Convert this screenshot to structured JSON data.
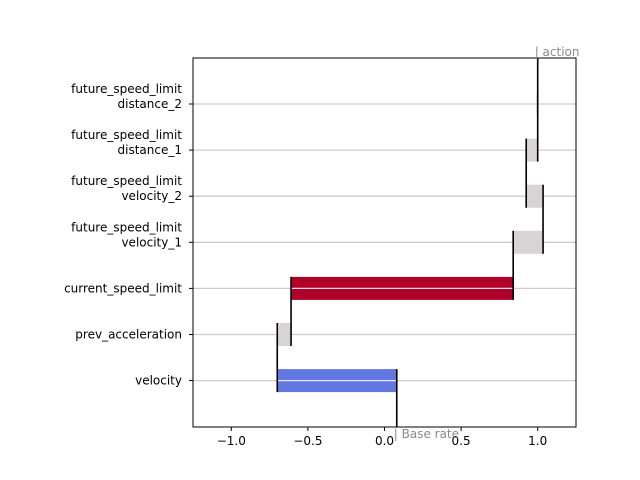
{
  "chart_data": {
    "type": "waterfall",
    "orientation": "horizontal",
    "title": "",
    "xlabel": "",
    "ylabel": "",
    "xlim": [
      -1.25,
      1.25
    ],
    "x_ticks": [
      -1.0,
      -0.5,
      0.0,
      0.5,
      1.0
    ],
    "x_tick_labels": [
      "−1.0",
      "−0.5",
      "0.0",
      "0.5",
      "1.0"
    ],
    "base_value": 0.08,
    "final_value": 1.0,
    "base_label": "| Base rate",
    "final_label": "| action",
    "grid": "horizontal",
    "colors": {
      "positive": "#b0002a",
      "negative": "#6278e0",
      "small": "#d8d3d4",
      "connector": "#000000",
      "grid": "#cccccc",
      "annotation": "#8a8a8a"
    },
    "features": [
      {
        "lines": [
          "future_speed_limit",
          "distance_2"
        ],
        "start": 1.0,
        "end": 1.0,
        "color_key": "small"
      },
      {
        "lines": [
          "future_speed_limit",
          "distance_1"
        ],
        "start": 0.925,
        "end": 1.0,
        "color_key": "small"
      },
      {
        "lines": [
          "future_speed_limit",
          "velocity_2"
        ],
        "start": 1.035,
        "end": 0.925,
        "color_key": "small"
      },
      {
        "lines": [
          "future_speed_limit",
          "velocity_1"
        ],
        "start": 0.84,
        "end": 1.035,
        "color_key": "small"
      },
      {
        "lines": [
          "current_speed_limit"
        ],
        "start": -0.61,
        "end": 0.84,
        "color_key": "positive"
      },
      {
        "lines": [
          "prev_acceleration"
        ],
        "start": -0.7,
        "end": -0.61,
        "color_key": "small"
      },
      {
        "lines": [
          "velocity"
        ],
        "start": 0.08,
        "end": -0.7,
        "color_key": "negative"
      }
    ]
  }
}
